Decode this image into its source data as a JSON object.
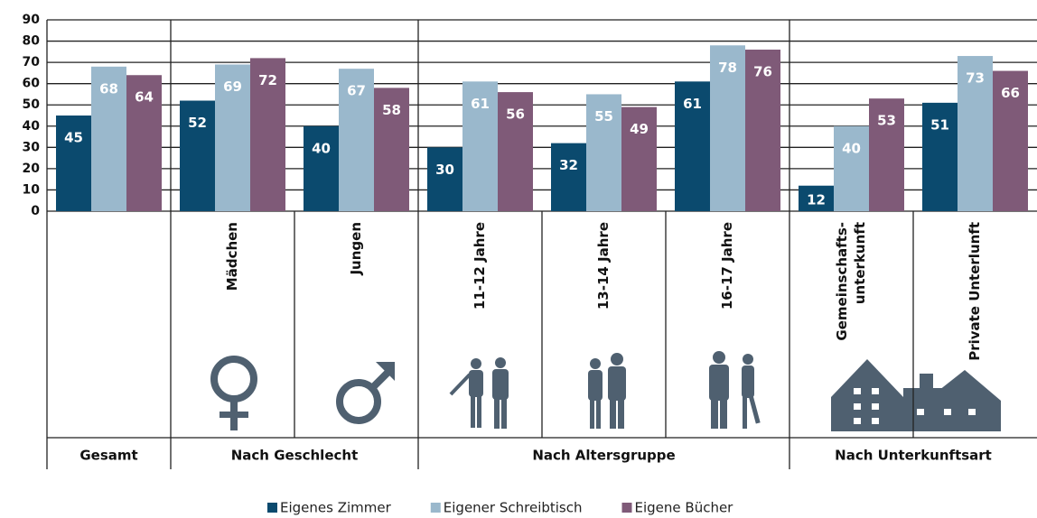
{
  "chart_data": {
    "type": "bar",
    "categories": [
      null,
      "Mädchen",
      "Jungen",
      "11-12 Jahre",
      "13-14 Jahre",
      "16-17 Jahre",
      [
        "Gemeinschafts-",
        "unterkunft"
      ],
      "Private Unterlunft"
    ],
    "groups": [
      {
        "label": "Gesamt",
        "size": 1
      },
      {
        "label": "Nach Geschlecht",
        "size": 2
      },
      {
        "label": "Nach Altersgruppe",
        "size": 3
      },
      {
        "label": "Nach Unterkunftsart",
        "size": 2
      }
    ],
    "series": [
      {
        "name": "Eigenes Zimmer",
        "color": "#0b4a6e",
        "values": [
          45,
          52,
          40,
          30,
          32,
          61,
          12,
          51
        ]
      },
      {
        "name": "Eigener Schreibtisch",
        "color": "#9ab8cc",
        "values": [
          68,
          69,
          67,
          61,
          55,
          78,
          40,
          73
        ]
      },
      {
        "name": "Eigene Bücher",
        "color": "#7f5a78",
        "values": [
          64,
          72,
          58,
          56,
          49,
          76,
          53,
          66
        ]
      }
    ],
    "ylim": [
      0,
      90
    ],
    "yticks": [
      0,
      10,
      20,
      30,
      40,
      50,
      60,
      70,
      80,
      90
    ],
    "grid": true
  }
}
